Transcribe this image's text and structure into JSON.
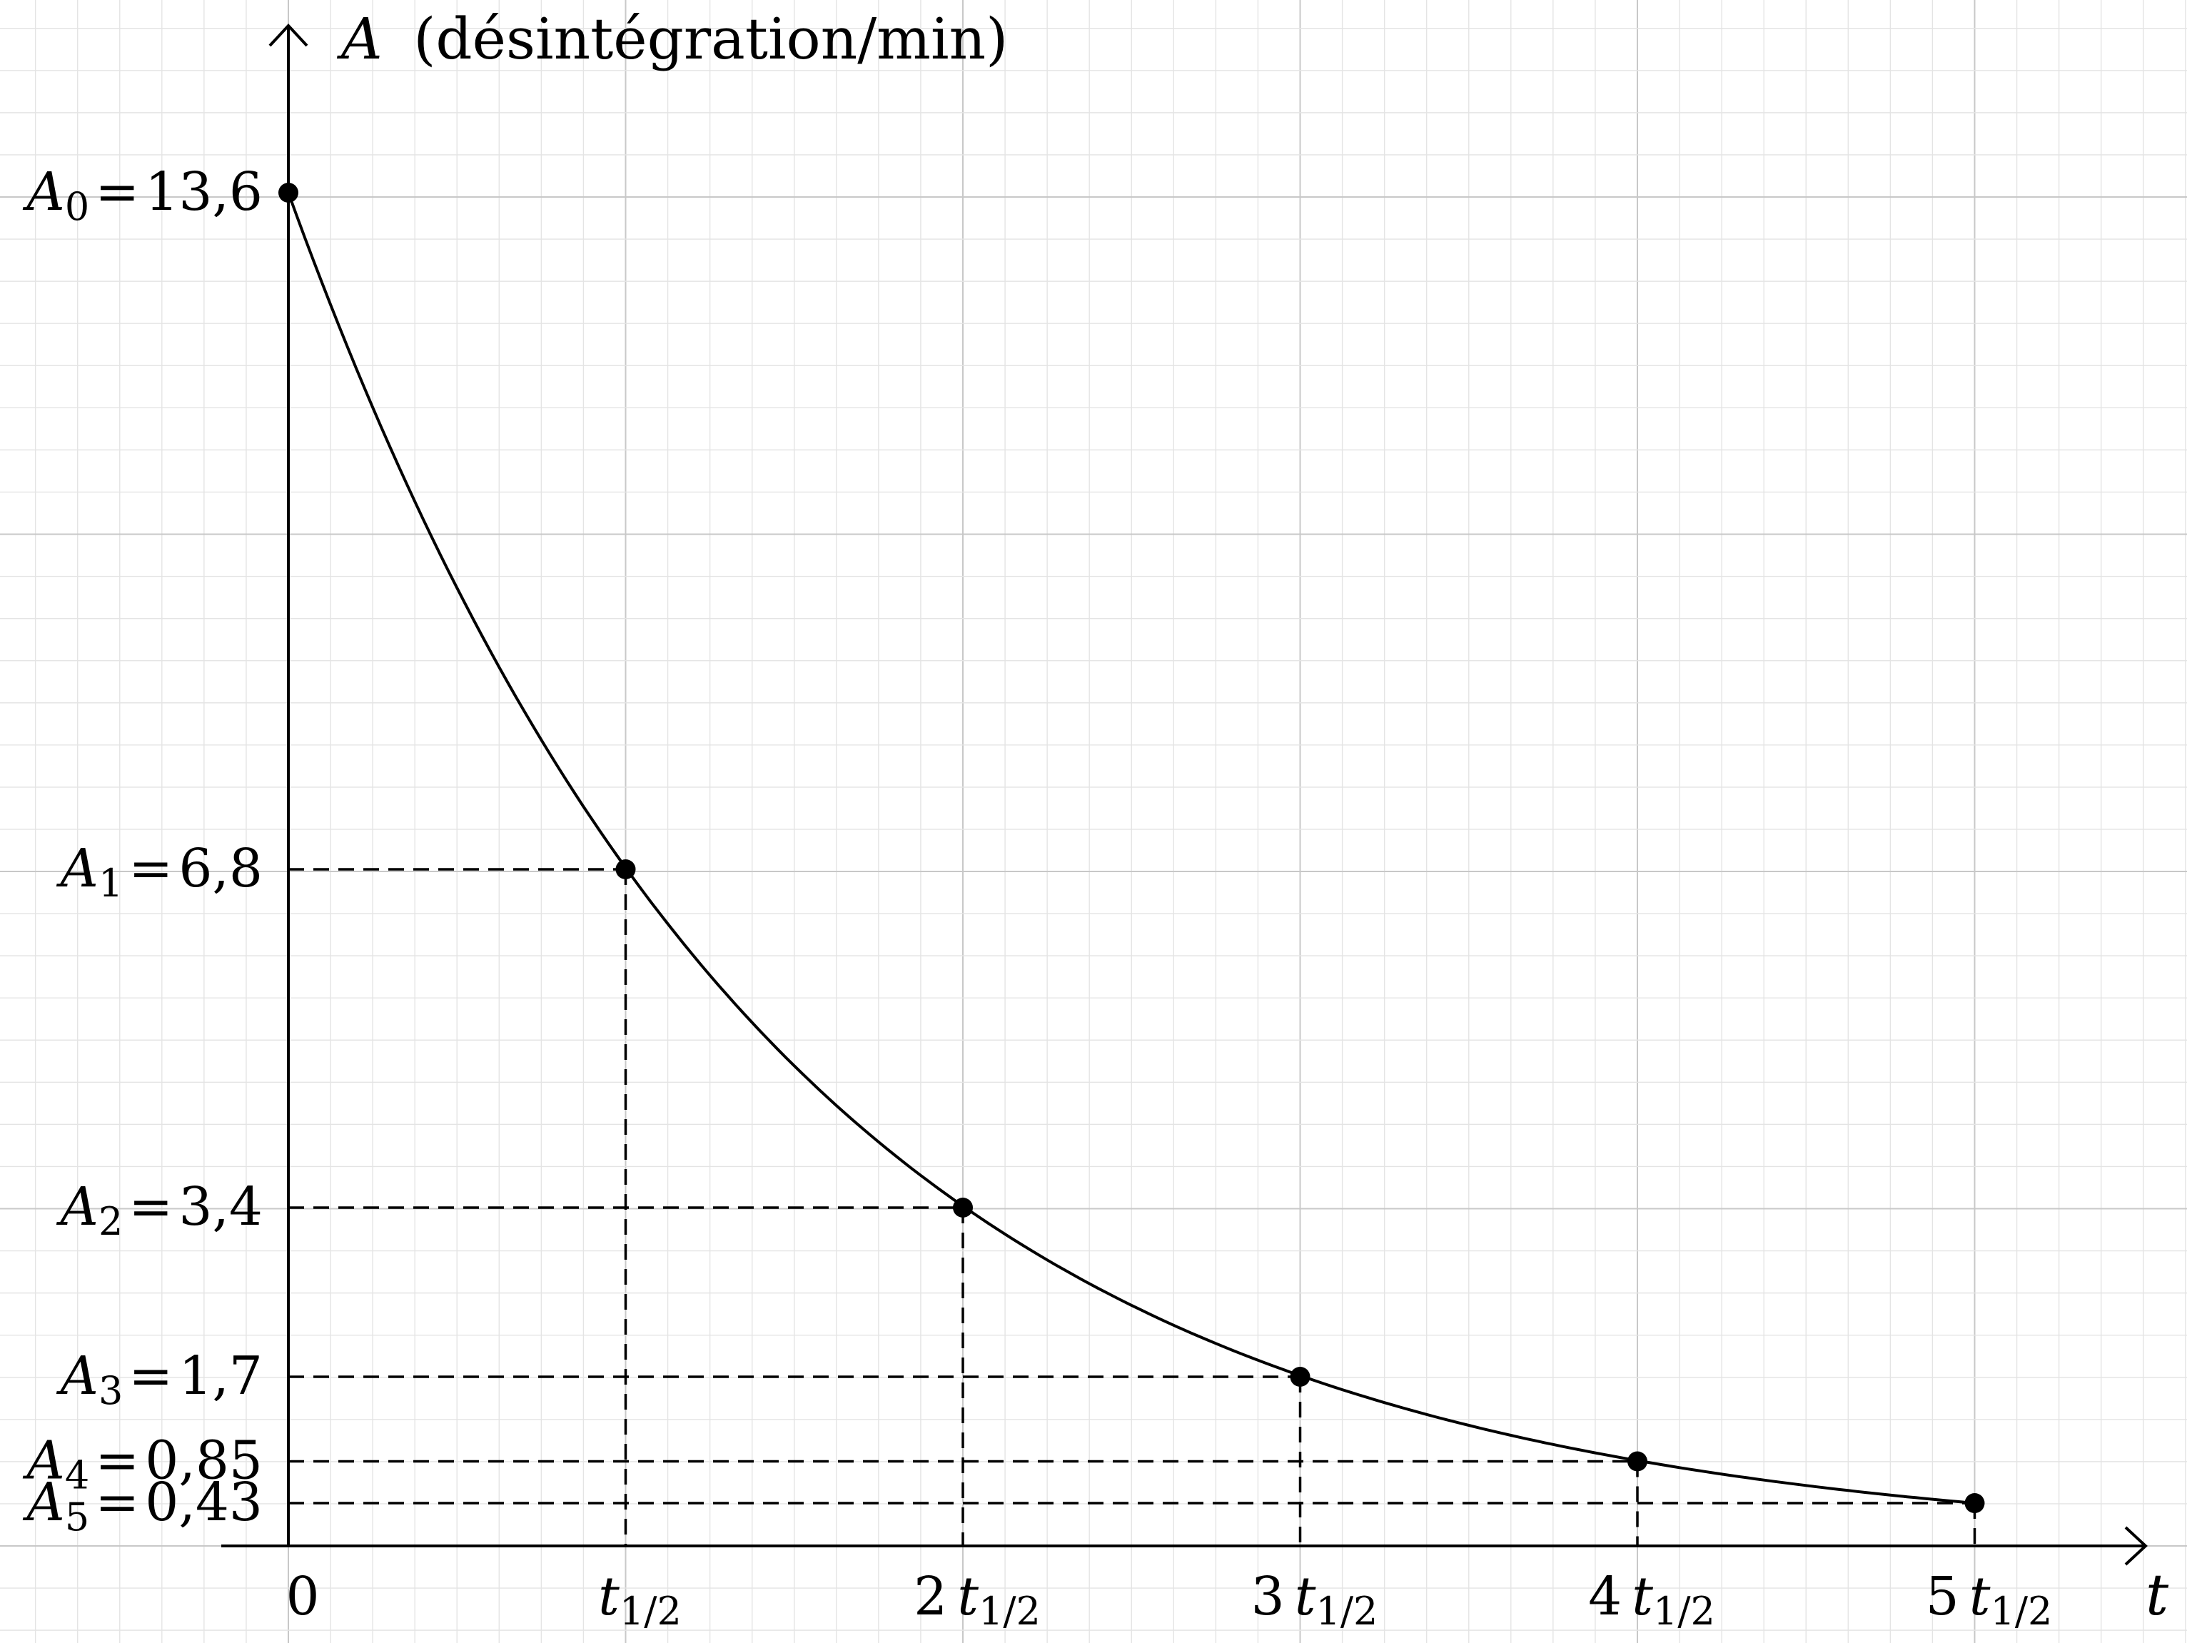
{
  "chart_data": {
    "type": "scatter",
    "curve": "exponential decay through points",
    "grid": true,
    "y_axis_label": {
      "var": "A",
      "unit": "(désintégration/min)"
    },
    "x_axis_label": "t",
    "xlim": [
      0,
      5.4
    ],
    "ylim": [
      0,
      14.4
    ],
    "x": [
      0,
      1,
      2,
      3,
      4,
      5
    ],
    "y": [
      13.6,
      6.8,
      3.4,
      1.7,
      0.85,
      0.43
    ],
    "y_labels": [
      {
        "var": "A",
        "sub": "0",
        "eq": "=",
        "val": "13,6"
      },
      {
        "var": "A",
        "sub": "1",
        "eq": "=",
        "val": "6,8"
      },
      {
        "var": "A",
        "sub": "2",
        "eq": "=",
        "val": "3,4"
      },
      {
        "var": "A",
        "sub": "3",
        "eq": "=",
        "val": "1,7"
      },
      {
        "var": "A",
        "sub": "4",
        "eq": "=",
        "val": "0,85"
      },
      {
        "var": "A",
        "sub": "5",
        "eq": "=",
        "val": "0,43"
      }
    ],
    "x_ticks": [
      {
        "coef": "0",
        "var": "",
        "sub": ""
      },
      {
        "coef": "",
        "var": "t",
        "sub": "1/2"
      },
      {
        "coef": "2",
        "var": "t",
        "sub": "1/2"
      },
      {
        "coef": "3",
        "var": "t",
        "sub": "1/2"
      },
      {
        "coef": "4",
        "var": "t",
        "sub": "1/2"
      },
      {
        "coef": "5",
        "var": "t",
        "sub": "1/2"
      }
    ],
    "colors": {
      "line": "#000000",
      "grid_minor": "#e4e4e4",
      "grid_major": "#c8c8c8"
    }
  }
}
